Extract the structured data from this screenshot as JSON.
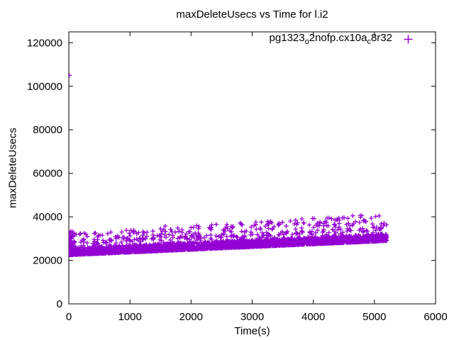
{
  "title": "maxDeleteUsecs vs Time for l.i2",
  "x_axis": {
    "label": "Time(s)",
    "min": 0,
    "max": 6000,
    "ticks": [
      0,
      1000,
      2000,
      3000,
      4000,
      5000,
      6000
    ]
  },
  "y_axis": {
    "label": "maxDeleteUsecs",
    "min": 0,
    "max": 125000,
    "ticks": [
      0,
      20000,
      40000,
      60000,
      80000,
      100000,
      120000
    ]
  },
  "legend": {
    "plain_name": "pg1323_o2nofp.cx10a_c8r32",
    "segments": [
      {
        "text": "pg1323"
      },
      {
        "text": "o",
        "sub": true
      },
      {
        "text": "2nofp.cx10a"
      },
      {
        "text": "c",
        "sub": true
      },
      {
        "text": "8r32"
      }
    ],
    "marker": "plus",
    "position": "top-right-inside"
  },
  "colors": {
    "series": "#9400d3",
    "axis": "#000000",
    "text": "#000000",
    "background": "#ffffff"
  },
  "chart_data": {
    "type": "scatter",
    "title": "maxDeleteUsecs vs Time for l.i2",
    "xlabel": "Time(s)",
    "ylabel": "maxDeleteUsecs",
    "xlim": [
      0,
      6000
    ],
    "ylim": [
      0,
      125000
    ],
    "grid": false,
    "legend_position": "top-right-inside",
    "series": [
      {
        "name": "pg1323_o2nofp.cx10a_c8r32",
        "marker": "plus",
        "color": "#9400d3",
        "x_range": [
          0,
          5200
        ],
        "summary": "Dense band of maxDeleteUsecs rising roughly linearly from ~23000us at t=0 to ~29500us at t=5200s (band thickness ~2500-3000us); sparse scatter of higher maxima between ~30000 and ~41000us increasing slightly with time; tight vertical cluster 22500-33500us at t~0; one extreme outlier ~105000us at t~0.",
        "notable_points": [
          [
            8,
            105000
          ]
        ],
        "generator": {
          "seed": 1323,
          "trend": {
            "intercept": 23000,
            "slope_per_sec": 1.25,
            "x_max": 5200
          },
          "dense": {
            "count": 3200,
            "noise_min": -500,
            "noise_span": 3300,
            "noise_pow": 2.2
          },
          "mid": {
            "count": 130,
            "offset": 2800,
            "span": 3200
          },
          "upper": {
            "count": 260,
            "offset": 4200,
            "span": 6200,
            "amp_base": 0.8,
            "amp_slope": 0.5,
            "spike_prob": 0.06,
            "spike_add": 2200
          },
          "edge_cluster": {
            "count": 45,
            "x_span": 70,
            "y_min": 22500,
            "y_span": 11000,
            "pow": 1.6
          }
        }
      }
    ]
  }
}
